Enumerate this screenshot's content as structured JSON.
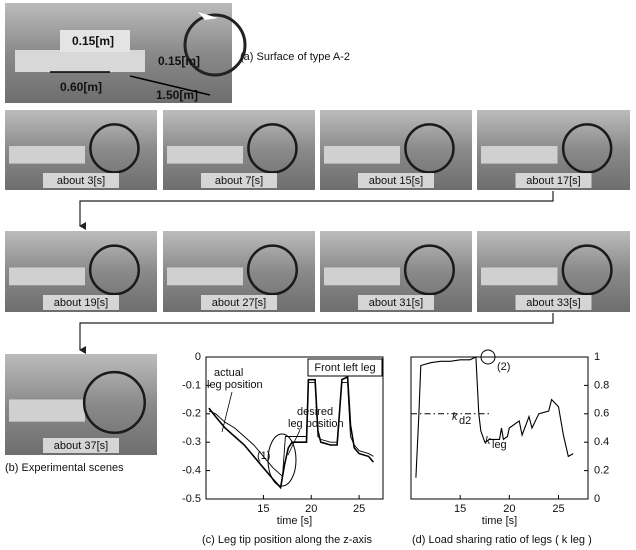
{
  "figure": {
    "surface_caption": "(a) Surface of type A-2",
    "dimensions": [
      "0.15[m]",
      "0.15[m]",
      "0.60[m]",
      "1.50[m]"
    ],
    "scenes": [
      "about 3[s]",
      "about 7[s]",
      "about 15[s]",
      "about 17[s]",
      "about 19[s]",
      "about 27[s]",
      "about 31[s]",
      "about 33[s]",
      "about 37[s]"
    ],
    "scenes_caption": "(b) Experimental scenes"
  },
  "chart_data": [
    {
      "type": "line",
      "caption": "(c) Leg tip position along the z-axis",
      "x_label": "time [s]",
      "legend_box": "Front left leg",
      "annotations": [
        "actual",
        "leg position",
        "desired",
        "leg position",
        "(1)"
      ],
      "xlim": [
        9,
        27.5
      ],
      "xticks": [
        15,
        20,
        25
      ],
      "ylim": [
        -0.5,
        0
      ],
      "yticks": [
        0,
        -0.1,
        -0.2,
        -0.3,
        -0.4,
        -0.5
      ],
      "series": [
        {
          "color": "#000000",
          "linewidth": 1.6,
          "x": [
            9.3,
            10,
            11,
            12,
            13,
            14,
            15,
            16,
            16.8,
            17.2,
            17.6,
            18,
            19,
            19.5,
            19.7,
            20.4,
            20.7,
            21,
            22,
            22.7,
            23.2,
            23.8,
            24.1,
            24.5,
            25,
            26,
            26.5
          ],
          "values": [
            -0.18,
            -0.21,
            -0.25,
            -0.28,
            -0.31,
            -0.35,
            -0.39,
            -0.43,
            -0.46,
            -0.38,
            -0.32,
            -0.3,
            -0.3,
            -0.3,
            -0.08,
            -0.08,
            -0.26,
            -0.3,
            -0.31,
            -0.31,
            -0.08,
            -0.07,
            -0.24,
            -0.32,
            -0.34,
            -0.35,
            -0.37
          ]
        },
        {
          "color": "#000000",
          "linewidth": 0.9,
          "x": [
            9.3,
            10,
            11,
            12,
            13,
            14,
            15,
            16,
            17,
            17.3,
            18,
            19,
            19.5,
            19.7,
            20.4,
            20.7,
            21,
            22,
            22.7,
            23.2,
            23.8,
            24.1,
            24.5,
            25,
            26,
            26.5
          ],
          "values": [
            -0.19,
            -0.2,
            -0.23,
            -0.25,
            -0.28,
            -0.31,
            -0.35,
            -0.39,
            -0.42,
            -0.28,
            -0.28,
            -0.28,
            -0.28,
            -0.09,
            -0.09,
            -0.28,
            -0.29,
            -0.3,
            -0.3,
            -0.09,
            -0.09,
            -0.28,
            -0.31,
            -0.33,
            -0.34,
            -0.35
          ]
        }
      ]
    },
    {
      "type": "line",
      "caption": "(d) Load sharing ratio of legs ( k leg )",
      "x_label": "time [s]",
      "annotations": [
        "k",
        "d2",
        "k",
        "leg",
        "(2)"
      ],
      "xlim": [
        10,
        28
      ],
      "xticks": [
        15,
        20,
        25
      ],
      "y2lim": [
        0,
        1
      ],
      "y2ticks": [
        0,
        0.2,
        0.4,
        0.6,
        0.8,
        1
      ],
      "series": [
        {
          "axis": "y2",
          "color": "#000000",
          "linewidth": 1.1,
          "x": [
            10.5,
            10.8,
            11,
            12,
            13,
            14,
            15,
            16,
            16.6,
            16.9,
            17.1,
            17.5,
            18,
            19,
            19.2,
            19.4,
            19.8,
            20,
            21,
            21.3,
            22,
            22.3,
            23,
            24,
            24.3,
            25,
            25.5,
            26,
            26.5
          ],
          "values": [
            0.15,
            0.6,
            0.94,
            0.96,
            0.97,
            0.97,
            0.98,
            0.98,
            1.0,
            0.6,
            0.48,
            0.4,
            0.42,
            0.42,
            0.5,
            0.42,
            0.44,
            0.5,
            0.55,
            0.45,
            0.58,
            0.5,
            0.6,
            0.62,
            0.7,
            0.65,
            0.45,
            0.3,
            0.32
          ]
        },
        {
          "axis": "y2",
          "color": "#000000",
          "linewidth": 1,
          "linestyle": "dashdot",
          "x": [
            10,
            18
          ],
          "values": [
            0.6,
            0.6
          ]
        }
      ]
    }
  ]
}
